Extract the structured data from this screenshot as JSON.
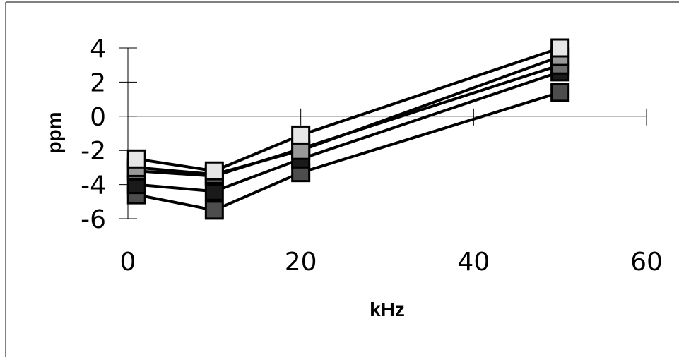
{
  "chart_data": {
    "type": "line",
    "xlabel": "kHz",
    "ylabel": "ppm",
    "xlim": [
      0,
      60
    ],
    "ylim": [
      -6,
      4
    ],
    "x_ticks": [
      0,
      20,
      40,
      60
    ],
    "y_ticks": [
      4,
      2,
      0,
      -2,
      -4,
      -6
    ],
    "x_tick_labels": [
      "0",
      "20",
      "40",
      "60"
    ],
    "y_tick_labels": [
      "4",
      "2",
      "0",
      "-2",
      "-4",
      "-6"
    ],
    "grid": false,
    "legend": "none",
    "x": [
      1,
      10,
      20,
      50
    ],
    "series": [
      {
        "values": [
          -2.5,
          -3.2,
          -1.1,
          4.0
        ],
        "color": "#e6e6e6"
      },
      {
        "values": [
          -3.0,
          -3.4,
          -2.0,
          3.5
        ],
        "color": "#999999"
      },
      {
        "values": [
          -3.2,
          -3.5,
          -1.9,
          3.0
        ],
        "color": "#6e6e6e"
      },
      {
        "values": [
          -4.0,
          -4.4,
          -2.5,
          2.6
        ],
        "color": "#1a1a1a"
      },
      {
        "values": [
          -4.6,
          -5.5,
          -3.3,
          1.4
        ],
        "color": "#4d4d4d"
      }
    ]
  }
}
